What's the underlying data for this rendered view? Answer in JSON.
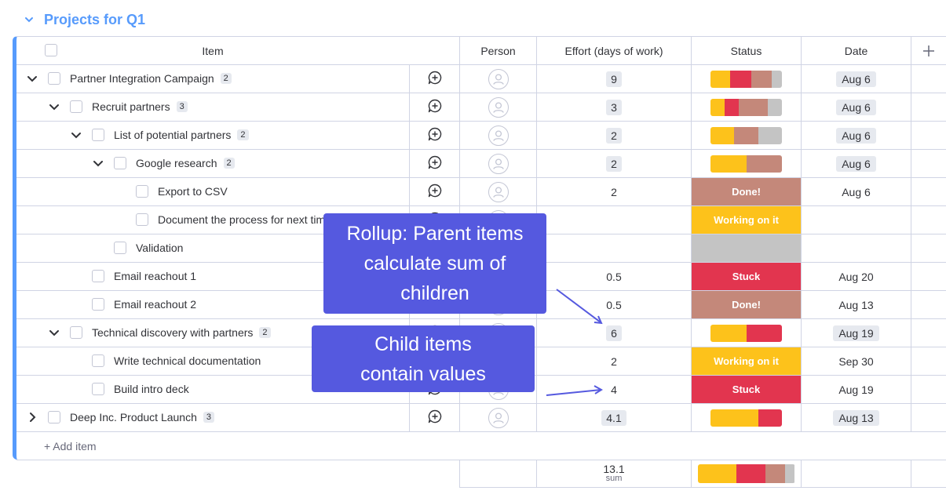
{
  "group": {
    "title": "Projects for Q1",
    "color": "#579bfc"
  },
  "columns": {
    "item": "Item",
    "person": "Person",
    "effort": "Effort (days of work)",
    "status": "Status",
    "date": "Date",
    "add": "+"
  },
  "colors": {
    "done": "#c4887a",
    "working": "#fdc21b",
    "stuck": "#e2354f",
    "empty": "#c4c4c4"
  },
  "rows": [
    {
      "label": "Partner Integration Campaign",
      "count": "2",
      "level": 0,
      "toggle": "down",
      "effort": "9",
      "effort_rollup": true,
      "status_type": "bar",
      "status_bar": [
        {
          "c": "working",
          "w": 0.28
        },
        {
          "c": "stuck",
          "w": 0.29
        },
        {
          "c": "done",
          "w": 0.29
        },
        {
          "c": "empty",
          "w": 0.14
        }
      ],
      "date": "Aug 6",
      "date_chip": true
    },
    {
      "label": "Recruit partners",
      "count": "3",
      "level": 1,
      "toggle": "down",
      "effort": "3",
      "effort_rollup": true,
      "status_type": "bar",
      "status_bar": [
        {
          "c": "working",
          "w": 0.2
        },
        {
          "c": "stuck",
          "w": 0.2
        },
        {
          "c": "done",
          "w": 0.4
        },
        {
          "c": "empty",
          "w": 0.2
        }
      ],
      "date": "Aug 6",
      "date_chip": true
    },
    {
      "label": "List of potential partners",
      "count": "2",
      "level": 2,
      "toggle": "down",
      "effort": "2",
      "effort_rollup": true,
      "status_type": "bar",
      "status_bar": [
        {
          "c": "working",
          "w": 0.33
        },
        {
          "c": "done",
          "w": 0.34
        },
        {
          "c": "empty",
          "w": 0.33
        }
      ],
      "date": "Aug 6",
      "date_chip": true
    },
    {
      "label": "Google research",
      "count": "2",
      "level": 3,
      "toggle": "down",
      "effort": "2",
      "effort_rollup": true,
      "status_type": "bar",
      "status_bar": [
        {
          "c": "working",
          "w": 0.5
        },
        {
          "c": "done",
          "w": 0.5
        }
      ],
      "date": "Aug 6",
      "date_chip": true
    },
    {
      "label": "Export to CSV",
      "count": "",
      "level": 4,
      "toggle": "",
      "effort": "2",
      "effort_rollup": false,
      "status_type": "full",
      "status_label": "Done!",
      "status_color": "done",
      "date": "Aug 6",
      "date_chip": false
    },
    {
      "label": "Document the process for next time",
      "count": "",
      "level": 4,
      "toggle": "",
      "effort": "",
      "effort_rollup": false,
      "status_type": "full",
      "status_label": "Working on it",
      "status_color": "working",
      "date": "",
      "date_chip": false
    },
    {
      "label": "Validation",
      "count": "",
      "level": 3,
      "toggle": "",
      "effort": "",
      "effort_rollup": false,
      "status_type": "full",
      "status_label": "",
      "status_color": "empty",
      "date": "",
      "date_chip": false
    },
    {
      "label": "Email reachout 1",
      "count": "",
      "level": 2,
      "toggle": "",
      "effort": "0.5",
      "effort_rollup": false,
      "status_type": "full",
      "status_label": "Stuck",
      "status_color": "stuck",
      "date": "Aug 20",
      "date_chip": false
    },
    {
      "label": "Email reachout 2",
      "count": "",
      "level": 2,
      "toggle": "",
      "effort": "0.5",
      "effort_rollup": false,
      "status_type": "full",
      "status_label": "Done!",
      "status_color": "done",
      "date": "Aug 13",
      "date_chip": false
    },
    {
      "label": "Technical discovery with partners",
      "count": "2",
      "level": 1,
      "toggle": "down",
      "effort": "6",
      "effort_rollup": true,
      "status_type": "bar",
      "status_bar": [
        {
          "c": "working",
          "w": 0.5
        },
        {
          "c": "stuck",
          "w": 0.5
        }
      ],
      "date": "Aug 19",
      "date_chip": true
    },
    {
      "label": "Write technical documentation",
      "count": "",
      "level": 2,
      "toggle": "",
      "effort": "2",
      "effort_rollup": false,
      "status_type": "full",
      "status_label": "Working on it",
      "status_color": "working",
      "date": "Sep 30",
      "date_chip": false
    },
    {
      "label": "Build intro deck",
      "count": "",
      "level": 2,
      "toggle": "",
      "effort": "4",
      "effort_rollup": false,
      "status_type": "full",
      "status_label": "Stuck",
      "status_color": "stuck",
      "date": "Aug 19",
      "date_chip": false
    },
    {
      "label": "Deep Inc. Product Launch",
      "count": "3",
      "level": 0,
      "toggle": "right",
      "effort": "4.1",
      "effort_rollup": true,
      "status_type": "bar",
      "status_bar": [
        {
          "c": "working",
          "w": 0.67
        },
        {
          "c": "stuck",
          "w": 0.33
        }
      ],
      "date": "Aug 13",
      "date_chip": true
    }
  ],
  "add_item": "+ Add item",
  "summary": {
    "effort_value": "13.1",
    "effort_label": "sum",
    "status_bar": [
      {
        "c": "working",
        "w": 0.4
      },
      {
        "c": "stuck",
        "w": 0.3
      },
      {
        "c": "done",
        "w": 0.2
      },
      {
        "c": "empty",
        "w": 0.1
      }
    ]
  },
  "callouts": {
    "rollup": [
      "Rollup: Parent items",
      "calculate sum of",
      "children"
    ],
    "child": [
      "Child items",
      "contain values"
    ]
  },
  "icons": {
    "collapse": "chevron-down-icon",
    "expand": "chevron-right-icon",
    "update": "add-update-icon",
    "person": "person-avatar-icon",
    "add_column": "plus-icon"
  }
}
